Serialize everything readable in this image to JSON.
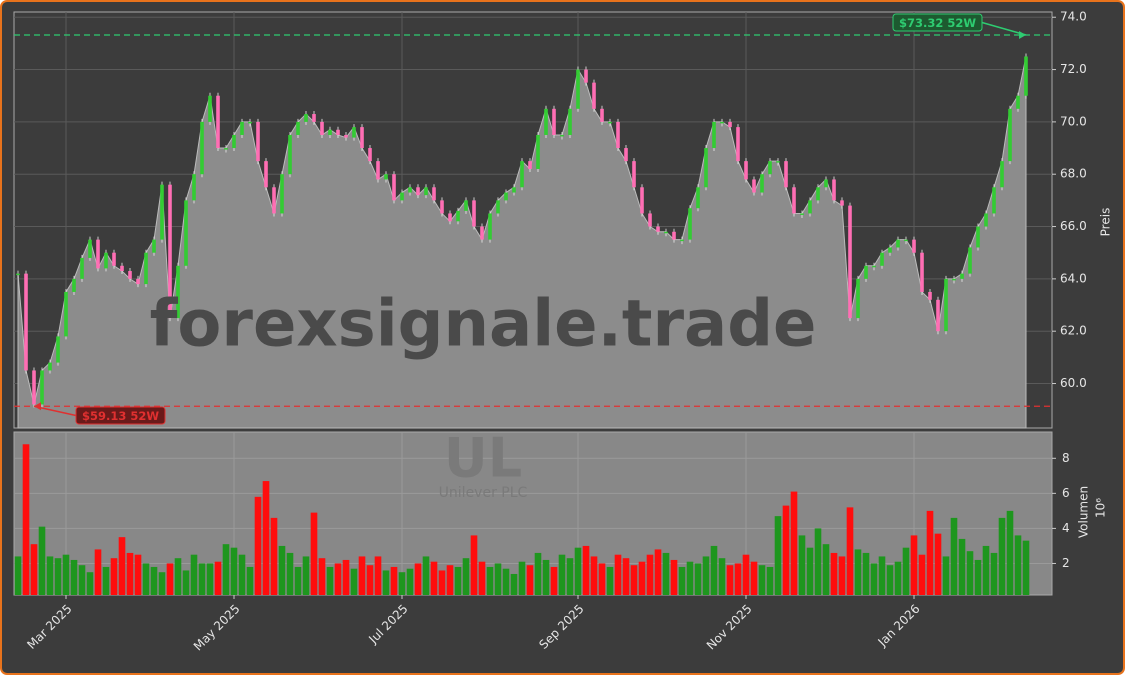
{
  "chart_data": {
    "type": "candlestick-volume",
    "watermark": "forexsignale.trade",
    "symbol": "UL",
    "company": "Unilever PLC",
    "ylabel": "Preis",
    "y2label": "Volumen",
    "y2_multiplier": "10⁶",
    "categories": [
      null,
      null,
      null,
      null,
      null,
      null,
      "Mar 2025",
      null,
      null,
      null,
      null,
      null,
      null,
      null,
      null,
      null,
      null,
      null,
      null,
      null,
      null,
      null,
      null,
      null,
      null,
      null,
      null,
      "May 2025",
      null,
      null,
      null,
      null,
      null,
      null,
      null,
      null,
      null,
      null,
      null,
      null,
      null,
      null,
      null,
      null,
      null,
      null,
      null,
      null,
      "Jul 2025",
      null,
      null,
      null,
      null,
      null,
      null,
      null,
      null,
      null,
      null,
      null,
      null,
      null,
      null,
      null,
      null,
      null,
      null,
      null,
      null,
      null,
      "Sep 2025",
      null,
      null,
      null,
      null,
      null,
      null,
      null,
      null,
      null,
      null,
      null,
      null,
      null,
      null,
      null,
      null,
      null,
      null,
      null,
      null,
      "Nov 2025",
      null,
      null,
      null,
      null,
      null,
      null,
      null,
      null,
      null,
      null,
      null,
      null,
      null,
      null,
      null,
      null,
      null,
      null,
      null,
      null,
      "Jan 2026",
      null,
      null,
      null,
      null,
      null,
      null,
      null,
      null,
      null,
      null,
      null,
      null,
      null,
      null
    ],
    "series": [
      {
        "name": "Preis",
        "color": "#8c8c8c",
        "up_color": "#33cc33",
        "down_color": "#ff6eb4",
        "values": [
          64.2,
          60.5,
          59.2,
          60.5,
          60.8,
          61.8,
          63.5,
          64.0,
          64.8,
          65.5,
          64.4,
          65.0,
          64.5,
          64.3,
          64.0,
          63.8,
          65.0,
          65.5,
          67.6,
          62.5,
          64.5,
          67.0,
          68.0,
          70.0,
          71.0,
          69.0,
          69.0,
          69.5,
          70.0,
          70.0,
          68.5,
          67.5,
          66.5,
          68.0,
          69.5,
          70.0,
          70.3,
          70.0,
          69.5,
          69.7,
          69.5,
          69.4,
          69.8,
          69.0,
          68.5,
          67.8,
          68.0,
          67.0,
          67.3,
          67.5,
          67.2,
          67.5,
          67.0,
          66.5,
          66.2,
          66.6,
          67.0,
          66.0,
          65.5,
          66.5,
          67.0,
          67.3,
          67.5,
          68.5,
          68.2,
          69.5,
          70.5,
          69.5,
          69.5,
          70.5,
          72.0,
          71.5,
          70.5,
          70.0,
          70.0,
          69.0,
          68.5,
          67.5,
          66.5,
          66.0,
          65.8,
          65.8,
          65.5,
          65.5,
          66.7,
          67.5,
          69.0,
          70.0,
          70.0,
          69.8,
          68.5,
          67.8,
          67.3,
          68.0,
          68.5,
          68.5,
          67.5,
          66.5,
          66.5,
          67.0,
          67.5,
          67.8,
          67.0,
          66.8,
          62.5,
          64.0,
          64.5,
          64.5,
          65.0,
          65.2,
          65.5,
          65.5,
          65.0,
          63.5,
          63.2,
          62.0,
          64.0,
          64.0,
          64.2,
          65.2,
          66.0,
          66.5,
          67.5,
          68.5,
          70.5,
          71.0,
          72.5
        ]
      },
      {
        "name": "Volumen",
        "axis": "y2",
        "up_color": "#1e961e",
        "down_color": "#ff0d0d",
        "values": [
          2.4,
          8.8,
          3.1,
          4.1,
          2.4,
          2.3,
          2.5,
          2.2,
          1.9,
          1.5,
          2.8,
          1.8,
          2.3,
          3.5,
          2.6,
          2.5,
          2.0,
          1.8,
          1.5,
          2.0,
          2.3,
          1.6,
          2.5,
          2.0,
          2.0,
          2.1,
          3.1,
          2.9,
          2.5,
          1.8,
          5.8,
          6.7,
          4.6,
          3.0,
          2.6,
          1.8,
          2.4,
          4.9,
          2.3,
          1.8,
          2.0,
          2.2,
          1.7,
          2.4,
          1.9,
          2.4,
          1.6,
          1.8,
          1.5,
          1.7,
          2.0,
          2.4,
          2.1,
          1.6,
          1.9,
          1.8,
          2.3,
          3.6,
          2.1,
          1.8,
          2.0,
          1.7,
          1.4,
          2.1,
          1.9,
          2.6,
          2.2,
          1.8,
          2.5,
          2.3,
          2.9,
          3.0,
          2.4,
          2.0,
          1.8,
          2.5,
          2.3,
          1.9,
          2.1,
          2.5,
          2.8,
          2.6,
          2.2,
          1.8,
          2.1,
          2.0,
          2.4,
          3.0,
          2.3,
          1.9,
          2.0,
          2.5,
          2.1,
          1.9,
          1.8,
          4.7,
          5.3,
          6.1,
          3.6,
          2.9,
          4.0,
          3.1,
          2.6,
          2.4,
          5.2,
          2.8,
          2.6,
          2.0,
          2.4,
          1.9,
          2.1,
          2.9,
          3.6,
          2.5,
          5.0,
          3.7,
          2.4,
          4.6,
          3.4,
          2.7,
          2.2,
          3.0,
          2.6,
          4.6,
          5.0,
          3.6,
          3.3
        ]
      }
    ],
    "ylim": [
      58.3,
      74.2
    ],
    "yticks": [
      {
        "value": 60,
        "label": "60.0"
      },
      {
        "value": 62,
        "label": "62.0"
      },
      {
        "value": 64,
        "label": "64.0"
      },
      {
        "value": 66,
        "label": "66.0"
      },
      {
        "value": 68,
        "label": "68.0"
      },
      {
        "value": 70,
        "label": "70.0"
      },
      {
        "value": 72,
        "label": "72.0"
      },
      {
        "value": 74,
        "label": "74.0"
      }
    ],
    "y2lim": [
      0.2,
      9.5
    ],
    "y2ticks": [
      2,
      4,
      6,
      8
    ],
    "grid": true,
    "annotations": [
      {
        "value": 73.32,
        "label": "$73.32 52W",
        "color": "#2ecc71",
        "index": 126
      },
      {
        "value": 59.13,
        "label": "$59.13 52W",
        "color": "#e03030",
        "index": 2
      }
    ]
  }
}
